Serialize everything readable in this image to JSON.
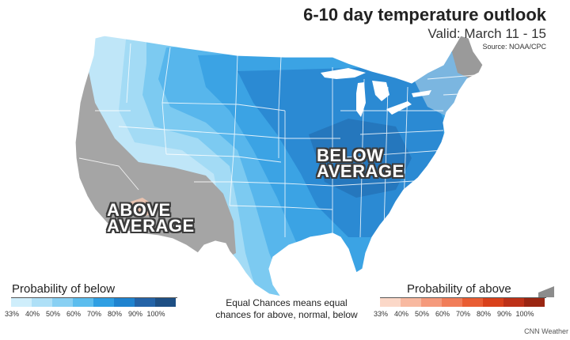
{
  "title": "6-10 day temperature outlook",
  "subtitle": "Valid: March 11 - 15",
  "source": "Source: NOAA/CPC",
  "map_labels": {
    "below": [
      "BELOW",
      "AVERAGE"
    ],
    "above": [
      "ABOVE",
      "AVERAGE"
    ]
  },
  "legend": {
    "below": {
      "title": "Probability of below",
      "ticks": [
        "33%",
        "40%",
        "50%",
        "60%",
        "70%",
        "80%",
        "90%",
        "100%"
      ],
      "colors": [
        "#cfeefb",
        "#aee0f7",
        "#88d0f3",
        "#5bbdee",
        "#2f9fe3",
        "#1f83cf",
        "#2463a7",
        "#1e4f84"
      ]
    },
    "above": {
      "title": "Probability of above",
      "ticks": [
        "33%",
        "40%",
        "50%",
        "60%",
        "70%",
        "80%",
        "90%",
        "100%"
      ],
      "colors": [
        "#fbd8c8",
        "#f8b9a0",
        "#f59a7c",
        "#f17d59",
        "#e95d33",
        "#d9411b",
        "#bd3118",
        "#9a2612"
      ]
    }
  },
  "equal_chances_note": "Equal Chances means equal chances for above, normal, below",
  "credit": "CNN Weather",
  "colors": {
    "equal_chances_gray": "#a5a5a5",
    "state_borders": "#ffffff",
    "label_outline": "#3b3b3b"
  }
}
